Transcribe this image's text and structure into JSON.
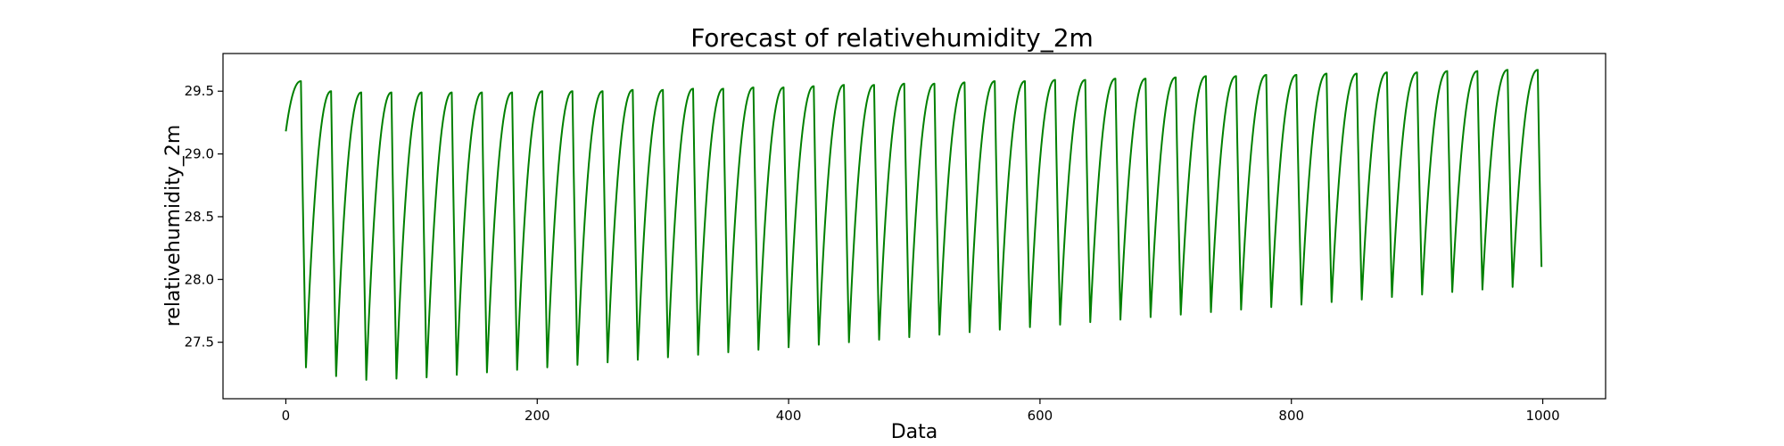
{
  "chart_data": {
    "type": "line",
    "title": "Forecast of relativehumidity_2m",
    "xlabel": "Data",
    "ylabel": "relativehumidity_2m",
    "xlim": [
      -50,
      1050
    ],
    "ylim": [
      27.05,
      29.8
    ],
    "xticks": [
      0,
      200,
      400,
      600,
      800,
      1000
    ],
    "yticks": [
      27.5,
      28.0,
      28.5,
      29.0,
      29.5
    ],
    "xtick_labels": [
      "0",
      "200",
      "400",
      "600",
      "800",
      "1000"
    ],
    "ytick_labels": [
      "27.5",
      "28.0",
      "28.5",
      "29.0",
      "29.5"
    ],
    "grid": false,
    "legend": "none",
    "series": [
      {
        "color": "#008000",
        "period": 24,
        "start": 0,
        "end": 999,
        "cycle_shape": [
          [
            0,
            0.0
          ],
          [
            3,
            0.5
          ],
          [
            6,
            0.58
          ],
          [
            10,
            0.55
          ],
          [
            16,
            0.0
          ],
          [
            24,
            1.0
          ]
        ],
        "x": [
          0,
          12,
          16,
          36,
          40,
          60,
          64,
          84,
          88,
          108,
          112,
          132,
          136,
          156,
          160,
          180,
          184,
          204,
          208,
          228,
          232,
          252,
          256,
          276,
          280,
          300,
          304,
          324,
          328,
          348,
          352,
          372,
          376,
          396,
          400,
          420,
          424,
          444,
          448,
          468,
          472,
          492,
          496,
          516,
          520,
          540,
          544,
          564,
          568,
          588,
          592,
          612,
          616,
          636,
          640,
          660,
          664,
          684,
          688,
          708,
          712,
          732,
          736,
          756,
          760,
          780,
          784,
          804,
          808,
          828,
          832,
          852,
          856,
          876,
          880,
          900,
          904,
          924,
          928,
          948,
          952,
          972,
          976,
          996,
          999
        ],
        "y": [
          29.18,
          29.58,
          27.3,
          29.5,
          27.23,
          29.49,
          27.2,
          29.49,
          27.21,
          29.49,
          27.22,
          29.49,
          27.24,
          29.49,
          27.26,
          29.49,
          27.28,
          29.5,
          27.3,
          29.5,
          27.32,
          29.5,
          27.34,
          29.51,
          27.36,
          29.51,
          27.38,
          29.52,
          27.4,
          29.52,
          27.42,
          29.53,
          27.44,
          29.53,
          27.46,
          29.54,
          27.48,
          29.55,
          27.5,
          29.55,
          27.52,
          29.56,
          27.54,
          29.56,
          27.56,
          29.57,
          27.58,
          29.58,
          27.6,
          29.58,
          27.62,
          29.59,
          27.64,
          29.59,
          27.66,
          29.6,
          27.68,
          29.6,
          27.7,
          29.61,
          27.72,
          29.62,
          27.74,
          29.62,
          27.76,
          29.63,
          27.78,
          29.63,
          27.8,
          29.64,
          27.82,
          29.64,
          27.84,
          29.65,
          27.86,
          29.65,
          27.88,
          29.66,
          27.9,
          29.66,
          27.92,
          29.67,
          27.94,
          29.67,
          28.1
        ]
      }
    ]
  }
}
